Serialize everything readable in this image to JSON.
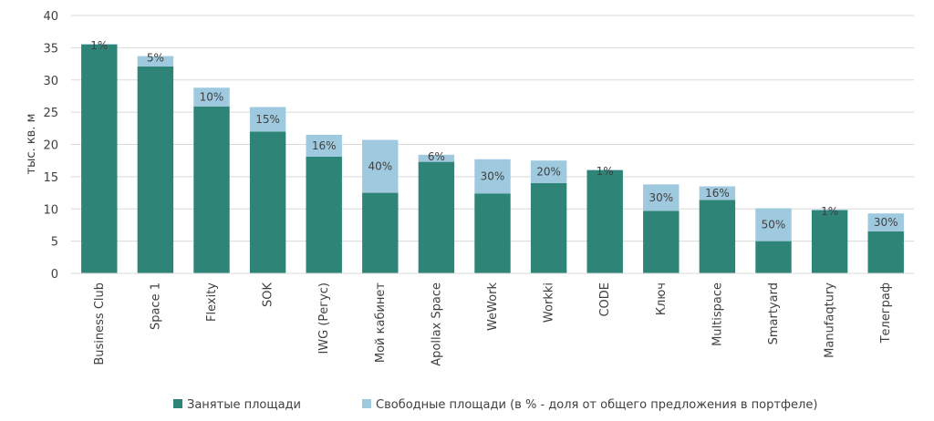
{
  "chart_data": {
    "type": "bar",
    "stacked": true,
    "ylabel": "тыс. кв. м",
    "ylim": [
      0,
      40
    ],
    "yticks": [
      0,
      5,
      10,
      15,
      20,
      25,
      30,
      35,
      40
    ],
    "grid": true,
    "legend_position": "bottom",
    "categories": [
      "Business Club",
      "Space 1",
      "Flexity",
      "SOK",
      "IWG (Регус)",
      "Мой кабинет",
      "Apollax Space",
      "WeWork",
      "Workki",
      "CODE",
      "Ключ",
      "Multispace",
      "Smartyard",
      "Manufaqtury",
      "Телеграф"
    ],
    "series": [
      {
        "name": "Занятые площади",
        "color": "#2e8577",
        "values": [
          35.5,
          32.1,
          25.9,
          22.0,
          18.1,
          12.5,
          17.3,
          12.4,
          14.0,
          16.0,
          9.7,
          11.4,
          5.0,
          9.8,
          6.5
        ]
      },
      {
        "name": "Свободные площади (в % - доля от общего предложения в портфеле)",
        "color": "#9ec9de",
        "values": [
          0.1,
          1.6,
          2.9,
          3.8,
          3.4,
          8.2,
          1.1,
          5.3,
          3.5,
          0.1,
          4.1,
          2.1,
          5.1,
          0.1,
          2.8
        ],
        "labels": [
          "1%",
          "5%",
          "10%",
          "15%",
          "16%",
          "40%",
          "6%",
          "30%",
          "20%",
          "1%",
          "30%",
          "16%",
          "50%",
          "1%",
          "30%"
        ]
      }
    ]
  }
}
